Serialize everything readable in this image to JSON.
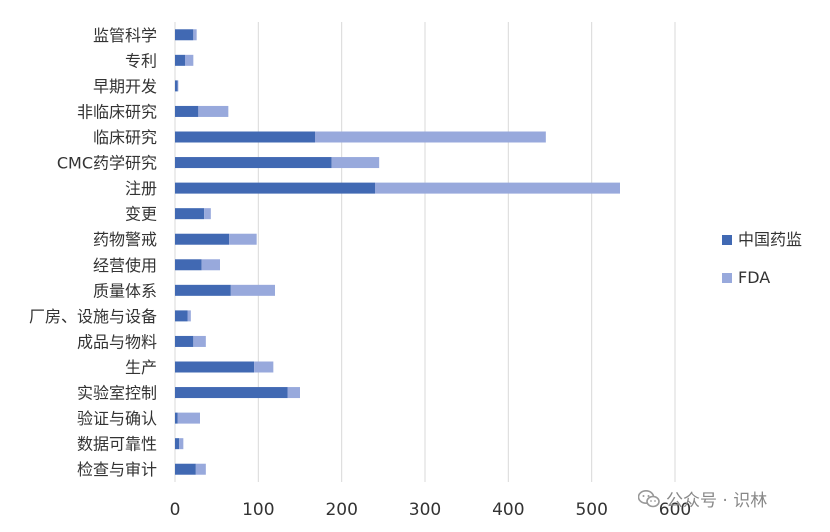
{
  "chart_data": {
    "type": "bar",
    "orientation": "horizontal",
    "stacked": true,
    "categories": [
      "监管科学",
      "专利",
      "早期开发",
      "非临床研究",
      "临床研究",
      "CMC药学研究",
      "注册",
      "变更",
      "药物警戒",
      "经营使用",
      "质量体系",
      "厂房、设施与设备",
      "成品与物料",
      "生产",
      "实验室控制",
      "验证与确认",
      "数据可靠性",
      "检查与审计"
    ],
    "series": [
      {
        "name": "中国药监",
        "color": "#4169b3",
        "values": [
          22,
          12,
          3,
          28,
          168,
          188,
          240,
          35,
          65,
          32,
          67,
          15,
          22,
          95,
          135,
          3,
          5,
          25
        ]
      },
      {
        "name": "FDA",
        "color": "#98a9dc",
        "values": [
          4,
          10,
          1,
          36,
          277,
          57,
          294,
          8,
          33,
          22,
          53,
          4,
          15,
          23,
          15,
          27,
          5,
          12
        ]
      }
    ],
    "x_ticks": [
      0,
      100,
      200,
      300,
      400,
      500,
      600
    ],
    "xlim": [
      0,
      600
    ],
    "grid": true,
    "legend_position": "right"
  },
  "watermark": {
    "text": "公众号 · 识林",
    "icon": "wechat-icon"
  }
}
